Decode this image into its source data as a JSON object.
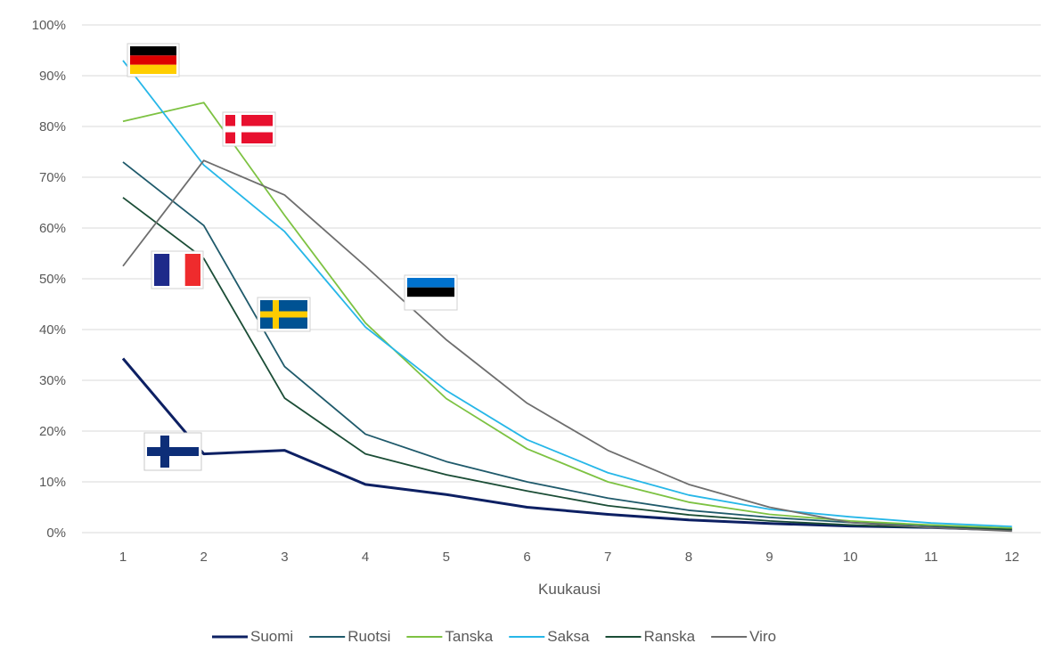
{
  "chart_data": {
    "type": "line",
    "title": "",
    "xlabel": "Kuukausi",
    "ylabel": "",
    "x": [
      1,
      2,
      3,
      4,
      5,
      6,
      7,
      8,
      9,
      10,
      11,
      12
    ],
    "ylim": [
      0,
      100
    ],
    "yticks": [
      0,
      10,
      20,
      30,
      40,
      50,
      60,
      70,
      80,
      90,
      100
    ],
    "ytick_labels": [
      "0%",
      "10%",
      "20%",
      "30%",
      "40%",
      "50%",
      "60%",
      "70%",
      "80%",
      "90%",
      "100%"
    ],
    "xtick_labels": [
      "1",
      "2",
      "3",
      "4",
      "5",
      "6",
      "7",
      "8",
      "9",
      "10",
      "11",
      "12"
    ],
    "grid": "horizontal",
    "legend_position": "bottom",
    "series": [
      {
        "name": "Suomi",
        "color": "#0d2063",
        "values": [
          34.3,
          15.5,
          16.2,
          9.5,
          7.5,
          5.0,
          3.6,
          2.5,
          1.8,
          1.3,
          1.0,
          0.5
        ]
      },
      {
        "name": "Ruotsi",
        "color": "#1f5a6b",
        "values": [
          73.0,
          60.5,
          32.7,
          19.4,
          14.0,
          10.0,
          6.8,
          4.4,
          3.0,
          2.0,
          1.4,
          0.8
        ]
      },
      {
        "name": "Tanska",
        "color": "#7dc242",
        "values": [
          81.0,
          84.7,
          62.5,
          41.3,
          26.4,
          16.5,
          10.0,
          6.0,
          3.6,
          2.3,
          1.5,
          0.9
        ]
      },
      {
        "name": "Saksa",
        "color": "#27b7e8",
        "values": [
          93.0,
          72.4,
          59.3,
          40.5,
          28.0,
          18.3,
          11.8,
          7.4,
          4.6,
          3.1,
          1.9,
          1.2
        ]
      },
      {
        "name": "Ranska",
        "color": "#1b4d36",
        "values": [
          66.0,
          54.0,
          26.5,
          15.5,
          11.4,
          8.2,
          5.3,
          3.5,
          2.3,
          1.5,
          1.0,
          0.6
        ]
      },
      {
        "name": "Viro",
        "color": "#6e6e6e",
        "values": [
          52.5,
          73.3,
          66.5,
          52.5,
          38.0,
          25.5,
          16.2,
          9.5,
          5.0,
          2.0,
          1.0,
          0.3
        ]
      }
    ],
    "flags": [
      {
        "country": "Saksa",
        "icon": "germany-flag-icon"
      },
      {
        "country": "Tanska",
        "icon": "denmark-flag-icon"
      },
      {
        "country": "Ranska",
        "icon": "france-flag-icon"
      },
      {
        "country": "Ruotsi",
        "icon": "sweden-flag-icon"
      },
      {
        "country": "Viro",
        "icon": "estonia-flag-icon"
      },
      {
        "country": "Suomi",
        "icon": "finland-flag-icon"
      }
    ]
  }
}
